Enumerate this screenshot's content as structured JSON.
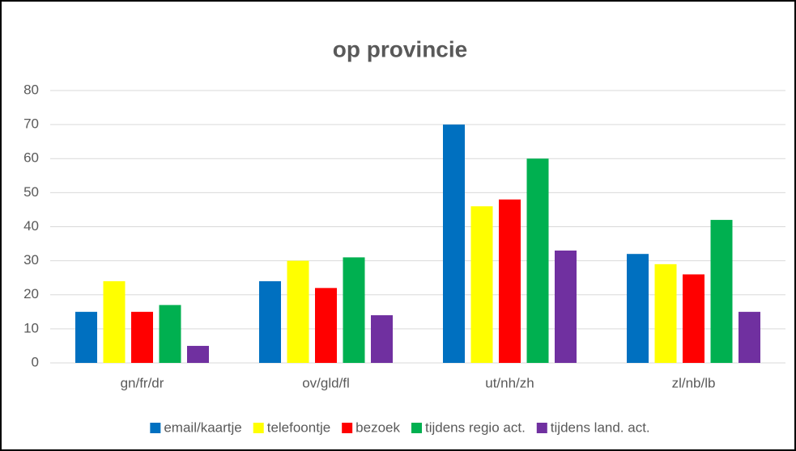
{
  "chart_data": {
    "type": "bar",
    "title": "op provincie",
    "categories": [
      "gn/fr/dr",
      "ov/gld/fl",
      "ut/nh/zh",
      "zl/nb/lb"
    ],
    "series": [
      {
        "name": "email/kaartje",
        "color": "#0070c0",
        "values": [
          15,
          24,
          70,
          32
        ]
      },
      {
        "name": "telefoontje",
        "color": "#ffff00",
        "values": [
          24,
          30,
          46,
          29
        ]
      },
      {
        "name": "bezoek",
        "color": "#ff0000",
        "values": [
          15,
          22,
          48,
          26
        ]
      },
      {
        "name": "tijdens regio act.",
        "color": "#00b050",
        "values": [
          17,
          31,
          60,
          42
        ]
      },
      {
        "name": "tijdens land. act.",
        "color": "#7030a0",
        "values": [
          5,
          14,
          33,
          15
        ]
      }
    ],
    "ylim": [
      0,
      80
    ],
    "yticks": [
      0,
      10,
      20,
      30,
      40,
      50,
      60,
      70,
      80
    ],
    "grid": true,
    "legend": "bottom"
  }
}
